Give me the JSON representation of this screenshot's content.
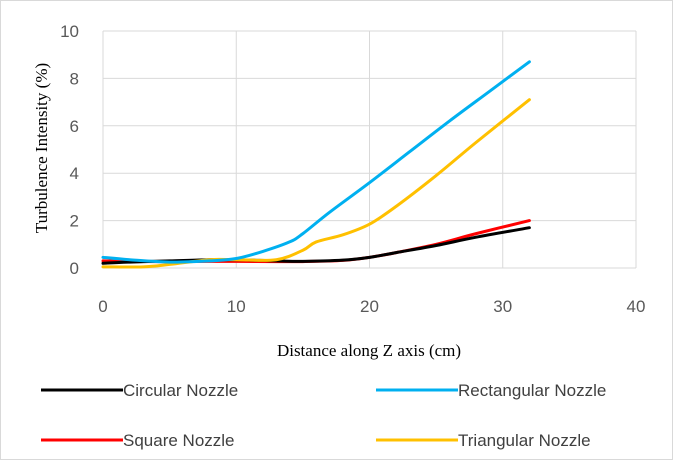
{
  "chart_data": {
    "type": "line",
    "xlabel": "Distance along Z axis (cm)",
    "ylabel": "Turbulence Intensity (%)",
    "xlim": [
      0,
      40
    ],
    "ylim": [
      0,
      10
    ],
    "xticks": [
      0,
      10,
      20,
      30,
      40
    ],
    "yticks": [
      0,
      2,
      4,
      6,
      8,
      10
    ],
    "grid": true,
    "legend_position": "bottom",
    "series": [
      {
        "name": "Circular Nozzle",
        "color": "#000000",
        "x": [
          0,
          2,
          5,
          8,
          10,
          13,
          15,
          18,
          20,
          22,
          25,
          28,
          32
        ],
        "y": [
          0.2,
          0.25,
          0.3,
          0.35,
          0.35,
          0.3,
          0.28,
          0.33,
          0.45,
          0.65,
          0.95,
          1.3,
          1.7
        ]
      },
      {
        "name": "Rectangular Nozzle",
        "color": "#00b0f0",
        "x": [
          0,
          2,
          5,
          8,
          10,
          12,
          14,
          15,
          17,
          20,
          23,
          26,
          29,
          32
        ],
        "y": [
          0.45,
          0.35,
          0.25,
          0.3,
          0.4,
          0.7,
          1.1,
          1.45,
          2.35,
          3.6,
          4.9,
          6.2,
          7.45,
          8.7
        ]
      },
      {
        "name": "Square Nozzle",
        "color": "#ff0000",
        "x": [
          0,
          2,
          5,
          8,
          10,
          13,
          15,
          18,
          20,
          22,
          25,
          28,
          32
        ],
        "y": [
          0.3,
          0.28,
          0.27,
          0.28,
          0.28,
          0.27,
          0.27,
          0.32,
          0.45,
          0.65,
          1.0,
          1.45,
          2.0
        ]
      },
      {
        "name": "Triangular Nozzle",
        "color": "#ffc000",
        "x": [
          0,
          3,
          5,
          8,
          10,
          13,
          15,
          16,
          18,
          20,
          22,
          25,
          28,
          32
        ],
        "y": [
          0.05,
          0.05,
          0.15,
          0.35,
          0.35,
          0.35,
          0.75,
          1.1,
          1.4,
          1.85,
          2.6,
          3.9,
          5.3,
          7.1
        ]
      }
    ]
  }
}
